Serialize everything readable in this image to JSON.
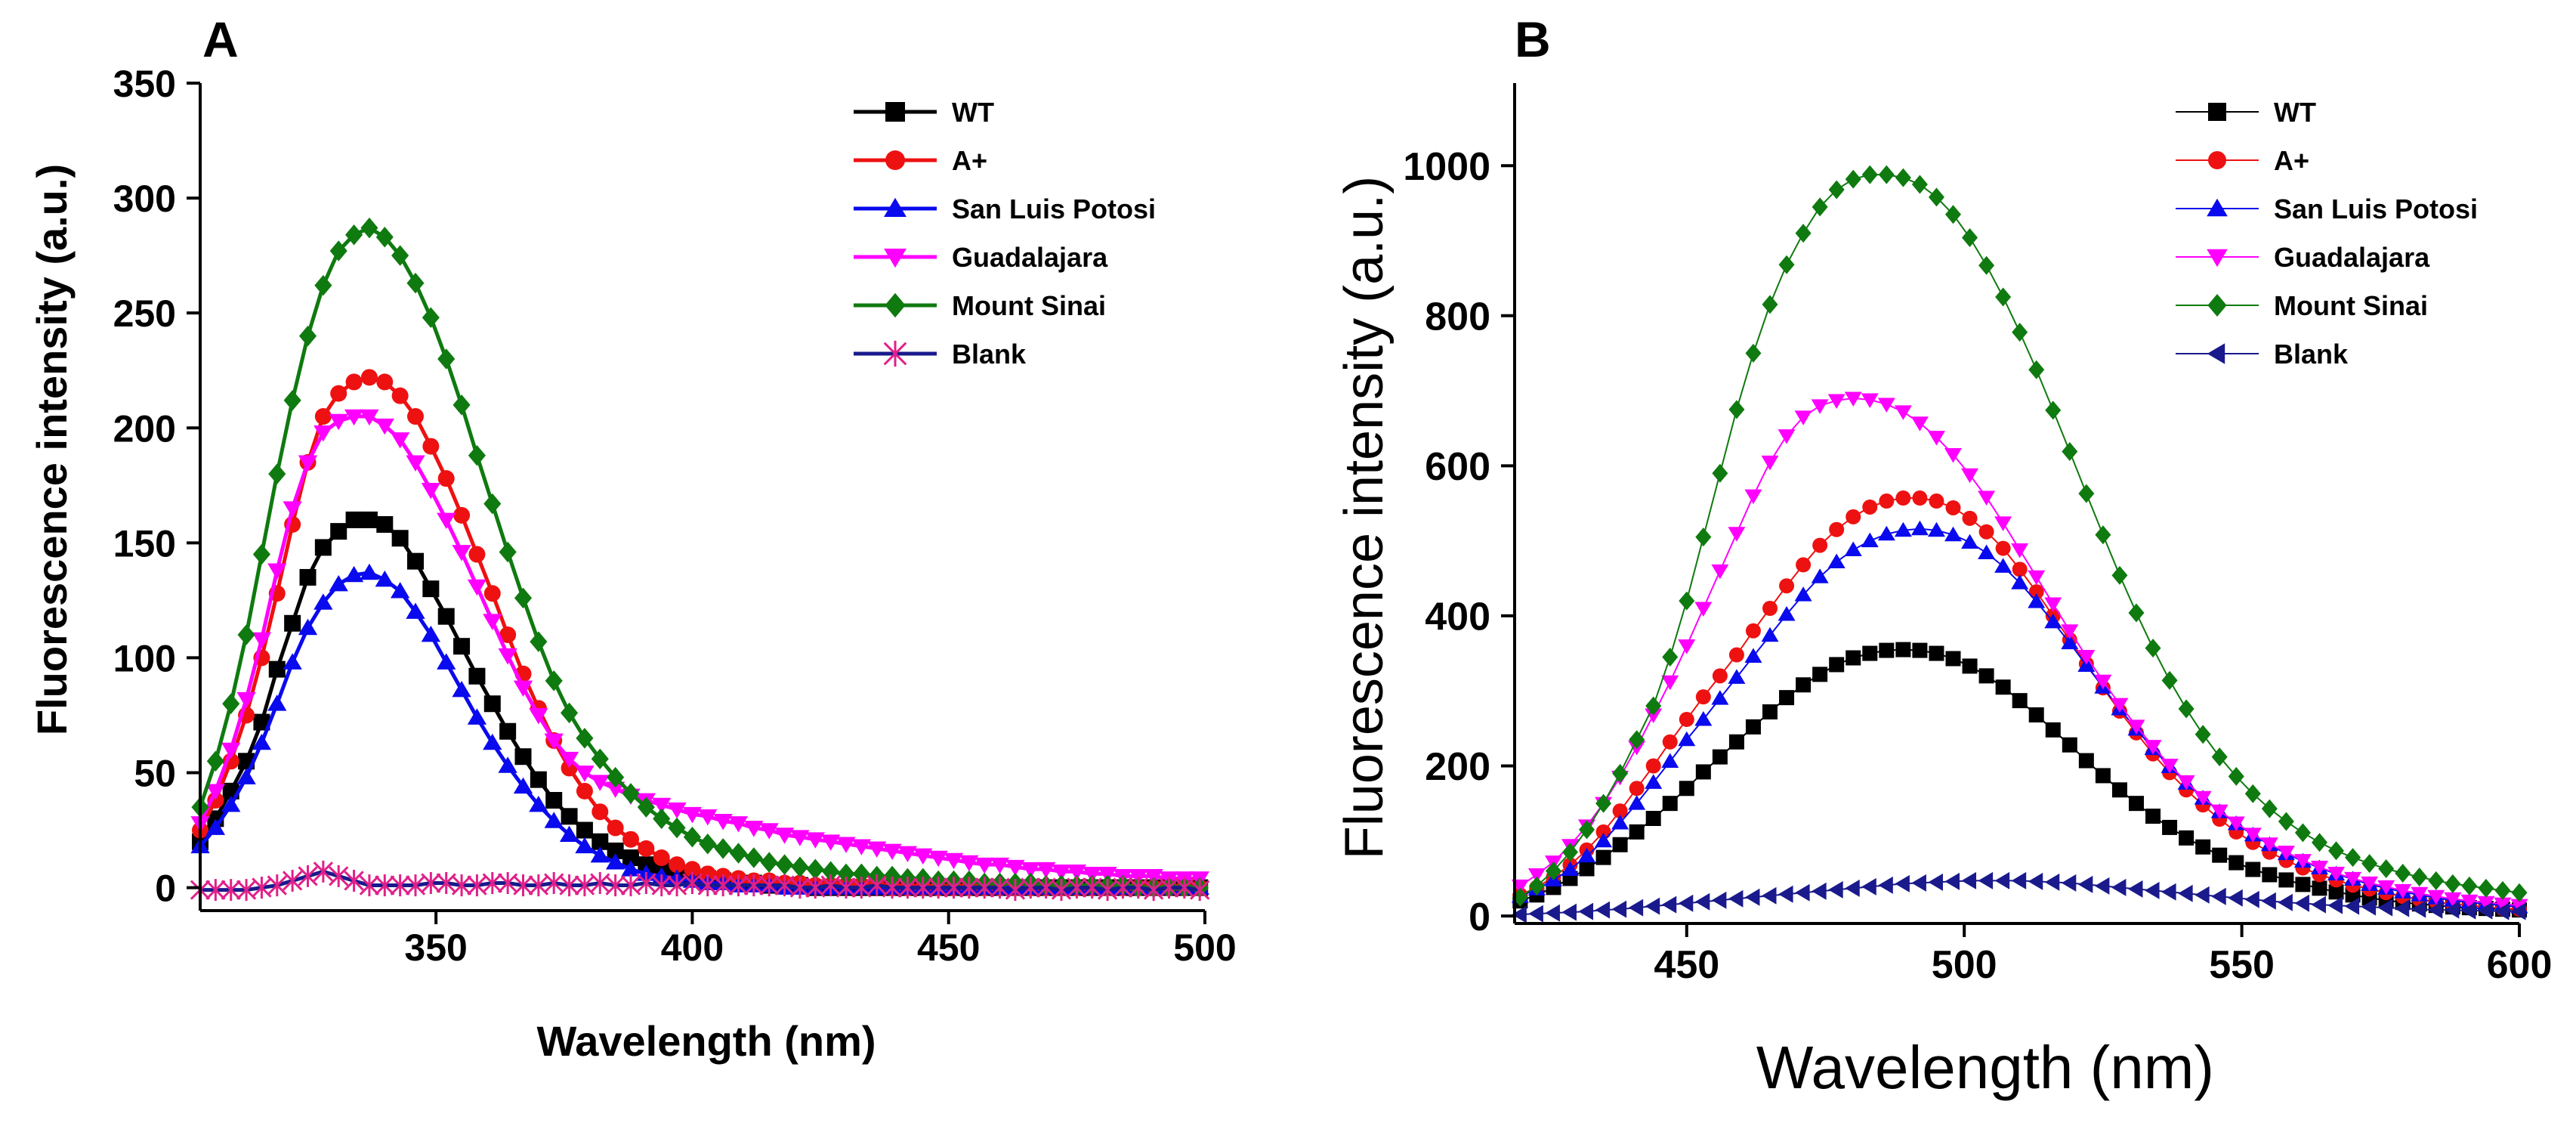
{
  "chart_data": [
    {
      "panel": "A",
      "type": "line",
      "xlabel": "Wavelength (nm)",
      "ylabel": "Fluorescence intensity (a.u.)",
      "xlim": [
        304,
        500
      ],
      "ylim": [
        -10,
        350
      ],
      "xticks": [
        350,
        400,
        450,
        500
      ],
      "yticks": [
        0,
        50,
        100,
        150,
        200,
        250,
        300,
        350
      ],
      "grid": false,
      "legend_position": "top-right",
      "series": [
        {
          "name": "WT",
          "color": "#000000",
          "marker": "square",
          "x_start": 304,
          "x_step": 3,
          "y": [
            20,
            30,
            42,
            55,
            72,
            95,
            115,
            135,
            148,
            155,
            160,
            160,
            158,
            152,
            142,
            130,
            118,
            105,
            92,
            80,
            68,
            57,
            47,
            38,
            31,
            25,
            20,
            16,
            13,
            10,
            8,
            6,
            5,
            4,
            3,
            2,
            2,
            1,
            1,
            1,
            0,
            0,
            0,
            0,
            0,
            0,
            0,
            0,
            0,
            0,
            0,
            0,
            0,
            0,
            0,
            0,
            0,
            0,
            0,
            0,
            0,
            0,
            0,
            0,
            0,
            0,
            0
          ]
        },
        {
          "name": "A+",
          "color": "#ee1111",
          "marker": "circle",
          "x_start": 304,
          "x_step": 3,
          "y": [
            25,
            38,
            55,
            75,
            100,
            128,
            158,
            185,
            205,
            215,
            220,
            222,
            220,
            214,
            205,
            192,
            178,
            162,
            145,
            128,
            110,
            93,
            78,
            64,
            52,
            42,
            33,
            26,
            21,
            17,
            13,
            10,
            8,
            6,
            5,
            4,
            3,
            3,
            2,
            2,
            1,
            1,
            1,
            1,
            1,
            0,
            0,
            0,
            0,
            0,
            0,
            0,
            0,
            0,
            0,
            0,
            0,
            0,
            0,
            0,
            0,
            0,
            0,
            0,
            0,
            0,
            0
          ]
        },
        {
          "name": "San Luis Potosi",
          "color": "#0a0aee",
          "marker": "triangle-up",
          "x_start": 304,
          "x_step": 3,
          "y": [
            18,
            26,
            36,
            48,
            63,
            80,
            98,
            113,
            124,
            132,
            136,
            137,
            134,
            129,
            120,
            110,
            98,
            86,
            74,
            63,
            53,
            44,
            36,
            29,
            23,
            18,
            14,
            11,
            8,
            6,
            5,
            4,
            3,
            2,
            2,
            1,
            1,
            1,
            0,
            0,
            0,
            0,
            0,
            0,
            0,
            0,
            0,
            0,
            0,
            0,
            0,
            0,
            0,
            0,
            0,
            0,
            0,
            0,
            0,
            0,
            0,
            0,
            0,
            0,
            0,
            0,
            0
          ]
        },
        {
          "name": "Guadalajara",
          "color": "#ff00ff",
          "marker": "triangle-down",
          "x_start": 304,
          "x_step": 3,
          "y": [
            28,
            42,
            60,
            82,
            108,
            138,
            165,
            185,
            198,
            203,
            205,
            205,
            201,
            195,
            185,
            173,
            160,
            146,
            131,
            116,
            101,
            87,
            75,
            64,
            56,
            50,
            46,
            43,
            40,
            38,
            36,
            34,
            32,
            31,
            29,
            28,
            26,
            25,
            23,
            22,
            21,
            20,
            19,
            18,
            17,
            16,
            15,
            14,
            13,
            12,
            11,
            10,
            10,
            9,
            8,
            8,
            7,
            7,
            6,
            6,
            5,
            5,
            5,
            4,
            4,
            4,
            4
          ]
        },
        {
          "name": "Mount Sinai",
          "color": "#0f7a0f",
          "marker": "diamond",
          "x_start": 304,
          "x_step": 3,
          "y": [
            35,
            55,
            80,
            110,
            145,
            180,
            212,
            240,
            262,
            277,
            284,
            287,
            283,
            275,
            263,
            248,
            230,
            210,
            188,
            167,
            146,
            126,
            107,
            90,
            76,
            65,
            56,
            48,
            41,
            35,
            30,
            26,
            22,
            19,
            17,
            15,
            13,
            11,
            10,
            9,
            8,
            7,
            6,
            6,
            5,
            5,
            4,
            4,
            3,
            3,
            3,
            2,
            2,
            2,
            2,
            1,
            1,
            1,
            1,
            1,
            1,
            0,
            0,
            0,
            0,
            0,
            0
          ]
        },
        {
          "name": "Blank",
          "color": "#e0208a",
          "marker": "asterisk",
          "x_start": 304,
          "x_step": 3,
          "y": [
            -1,
            -1,
            -1,
            -1,
            0,
            1,
            3,
            5,
            7,
            5,
            3,
            1,
            1,
            1,
            1,
            2,
            2,
            1,
            1,
            2,
            2,
            1,
            1,
            2,
            1,
            1,
            2,
            1,
            1,
            2,
            1,
            1,
            2,
            1,
            1,
            1,
            1,
            1,
            1,
            0,
            0,
            1,
            0,
            0,
            1,
            0,
            0,
            0,
            0,
            0,
            0,
            0,
            0,
            -1,
            0,
            0,
            -1,
            0,
            0,
            -1,
            0,
            0,
            -1,
            0,
            0,
            -1,
            0
          ]
        }
      ]
    },
    {
      "panel": "B",
      "type": "line",
      "xlabel": "Wavelength (nm)",
      "ylabel": "Fluorescence intensity (a.u.)",
      "xlim": [
        419,
        600
      ],
      "ylim": [
        -10,
        1110
      ],
      "xticks": [
        450,
        500,
        550,
        600
      ],
      "yticks": [
        0,
        200,
        400,
        600,
        800,
        1000
      ],
      "grid": false,
      "legend_position": "top-right",
      "series": [
        {
          "name": "WT",
          "color": "#000000",
          "marker": "square",
          "x_start": 420,
          "x_step": 3,
          "y": [
            20,
            28,
            38,
            50,
            63,
            78,
            95,
            112,
            130,
            150,
            170,
            192,
            212,
            232,
            252,
            272,
            291,
            308,
            322,
            335,
            344,
            350,
            354,
            355,
            354,
            350,
            343,
            333,
            320,
            305,
            287,
            268,
            248,
            228,
            207,
            187,
            168,
            150,
            133,
            118,
            104,
            92,
            81,
            71,
            62,
            55,
            48,
            42,
            37,
            32,
            28,
            24,
            21,
            18,
            16,
            14,
            12,
            11,
            10,
            9,
            8
          ]
        },
        {
          "name": "A+",
          "color": "#ee1111",
          "marker": "circle",
          "x_start": 420,
          "x_step": 3,
          "y": [
            28,
            38,
            52,
            68,
            88,
            112,
            140,
            170,
            200,
            232,
            262,
            292,
            320,
            348,
            380,
            410,
            440,
            468,
            494,
            515,
            532,
            545,
            553,
            557,
            557,
            553,
            544,
            530,
            512,
            490,
            462,
            432,
            400,
            368,
            336,
            304,
            273,
            244,
            216,
            191,
            168,
            148,
            129,
            112,
            98,
            85,
            74,
            64,
            55,
            48,
            41,
            36,
            31,
            26,
            22,
            19,
            16,
            14,
            12,
            10,
            9
          ]
        },
        {
          "name": "San Luis Potosi",
          "color": "#0a0aee",
          "marker": "triangle-up",
          "x_start": 420,
          "x_step": 3,
          "y": [
            26,
            36,
            48,
            62,
            80,
            100,
            124,
            150,
            178,
            206,
            235,
            262,
            290,
            318,
            346,
            374,
            402,
            428,
            452,
            472,
            488,
            500,
            509,
            514,
            516,
            514,
            508,
            498,
            484,
            466,
            444,
            419,
            392,
            364,
            334,
            305,
            276,
            249,
            223,
            199,
            177,
            157,
            139,
            123,
            108,
            95,
            83,
            73,
            64,
            56,
            49,
            42,
            37,
            32,
            28,
            24,
            21,
            18,
            16,
            14,
            12
          ]
        },
        {
          "name": "Guadalajara",
          "color": "#ff00ff",
          "marker": "triangle-down",
          "x_start": 420,
          "x_step": 3,
          "y": [
            40,
            55,
            72,
            94,
            120,
            150,
            185,
            225,
            268,
            312,
            360,
            410,
            460,
            510,
            560,
            605,
            640,
            665,
            680,
            687,
            690,
            688,
            682,
            672,
            657,
            638,
            615,
            588,
            558,
            524,
            488,
            452,
            416,
            380,
            346,
            313,
            282,
            253,
            226,
            201,
            179,
            158,
            140,
            124,
            109,
            96,
            85,
            74,
            65,
            57,
            50,
            44,
            39,
            34,
            30,
            26,
            23,
            20,
            18,
            16,
            14
          ]
        },
        {
          "name": "Mount Sinai",
          "color": "#0f7a0f",
          "marker": "diamond",
          "x_start": 420,
          "x_step": 3,
          "y": [
            25,
            40,
            60,
            85,
            115,
            150,
            190,
            235,
            280,
            345,
            420,
            505,
            590,
            675,
            750,
            815,
            868,
            910,
            945,
            968,
            982,
            988,
            988,
            984,
            975,
            958,
            935,
            904,
            867,
            825,
            778,
            728,
            674,
            619,
            563,
            508,
            454,
            404,
            357,
            314,
            276,
            242,
            212,
            186,
            163,
            143,
            126,
            111,
            98,
            87,
            78,
            70,
            63,
            57,
            52,
            47,
            43,
            40,
            37,
            34,
            31
          ]
        },
        {
          "name": "Blank",
          "color": "#1a1a8c",
          "marker": "triangle-left",
          "x_start": 420,
          "x_step": 3,
          "y": [
            2,
            3,
            4,
            5,
            6,
            8,
            9,
            11,
            13,
            15,
            17,
            19,
            21,
            23,
            25,
            27,
            29,
            31,
            33,
            35,
            37,
            39,
            41,
            43,
            44,
            45,
            46,
            47,
            47,
            47,
            47,
            46,
            45,
            44,
            42,
            40,
            38,
            36,
            34,
            32,
            30,
            28,
            26,
            24,
            22,
            20,
            18,
            17,
            15,
            14,
            13,
            12,
            11,
            10,
            9,
            8,
            8,
            7,
            7,
            6,
            6
          ]
        }
      ]
    }
  ]
}
